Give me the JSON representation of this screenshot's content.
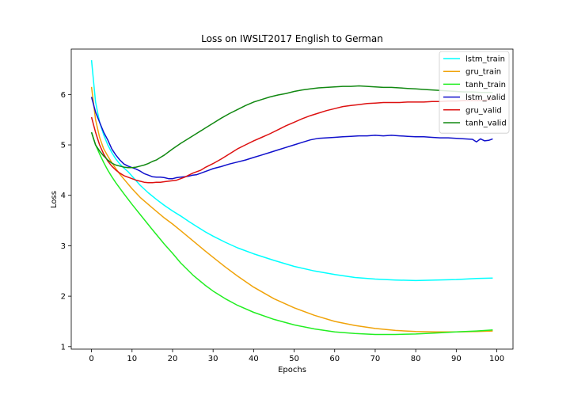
{
  "chart_data": {
    "type": "line",
    "title": "Loss on IWSLT2017 English to German",
    "xlabel": "Epochs",
    "ylabel": "Loss",
    "xlim": [
      -5,
      104
    ],
    "ylim": [
      0.95,
      6.9
    ],
    "xticks": [
      0,
      10,
      20,
      30,
      40,
      50,
      60,
      70,
      80,
      90,
      100
    ],
    "yticks": [
      1,
      2,
      3,
      4,
      5,
      6
    ],
    "grid": false,
    "legend_position": "top-right",
    "series": [
      {
        "name": "lstm_train",
        "color": "#00ffff",
        "points": [
          [
            0,
            6.68
          ],
          [
            1,
            5.85
          ],
          [
            2,
            5.45
          ],
          [
            3,
            5.2
          ],
          [
            4,
            5.0
          ],
          [
            5,
            4.85
          ],
          [
            6,
            4.72
          ],
          [
            7,
            4.62
          ],
          [
            8,
            4.54
          ],
          [
            9,
            4.47
          ],
          [
            10,
            4.38
          ],
          [
            12,
            4.2
          ],
          [
            14,
            4.05
          ],
          [
            16,
            3.92
          ],
          [
            18,
            3.8
          ],
          [
            20,
            3.69
          ],
          [
            22,
            3.59
          ],
          [
            24,
            3.48
          ],
          [
            26,
            3.38
          ],
          [
            28,
            3.28
          ],
          [
            30,
            3.19
          ],
          [
            33,
            3.07
          ],
          [
            36,
            2.96
          ],
          [
            40,
            2.84
          ],
          [
            45,
            2.71
          ],
          [
            50,
            2.59
          ],
          [
            55,
            2.5
          ],
          [
            60,
            2.43
          ],
          [
            65,
            2.37
          ],
          [
            70,
            2.34
          ],
          [
            75,
            2.32
          ],
          [
            80,
            2.31
          ],
          [
            85,
            2.32
          ],
          [
            90,
            2.33
          ],
          [
            95,
            2.35
          ],
          [
            99,
            2.36
          ]
        ]
      },
      {
        "name": "gru_train",
        "color": "#f0a30a",
        "points": [
          [
            0,
            6.15
          ],
          [
            1,
            5.5
          ],
          [
            2,
            5.15
          ],
          [
            3,
            4.92
          ],
          [
            4,
            4.78
          ],
          [
            5,
            4.65
          ],
          [
            6,
            4.53
          ],
          [
            7,
            4.42
          ],
          [
            8,
            4.32
          ],
          [
            10,
            4.13
          ],
          [
            12,
            3.96
          ],
          [
            15,
            3.75
          ],
          [
            18,
            3.55
          ],
          [
            20,
            3.43
          ],
          [
            22,
            3.3
          ],
          [
            25,
            3.1
          ],
          [
            28,
            2.9
          ],
          [
            30,
            2.77
          ],
          [
            33,
            2.58
          ],
          [
            36,
            2.4
          ],
          [
            40,
            2.18
          ],
          [
            45,
            1.95
          ],
          [
            50,
            1.77
          ],
          [
            55,
            1.62
          ],
          [
            60,
            1.5
          ],
          [
            65,
            1.42
          ],
          [
            70,
            1.36
          ],
          [
            75,
            1.32
          ],
          [
            80,
            1.3
          ],
          [
            85,
            1.29
          ],
          [
            90,
            1.29
          ],
          [
            95,
            1.3
          ],
          [
            99,
            1.31
          ]
        ]
      },
      {
        "name": "tanh_train",
        "color": "#22ee22",
        "points": [
          [
            0,
            5.25
          ],
          [
            1,
            5.0
          ],
          [
            2,
            4.82
          ],
          [
            3,
            4.65
          ],
          [
            4,
            4.5
          ],
          [
            5,
            4.37
          ],
          [
            6,
            4.25
          ],
          [
            7,
            4.14
          ],
          [
            8,
            4.03
          ],
          [
            10,
            3.82
          ],
          [
            12,
            3.62
          ],
          [
            15,
            3.32
          ],
          [
            18,
            3.03
          ],
          [
            20,
            2.85
          ],
          [
            22,
            2.66
          ],
          [
            25,
            2.42
          ],
          [
            28,
            2.22
          ],
          [
            30,
            2.1
          ],
          [
            33,
            1.95
          ],
          [
            36,
            1.82
          ],
          [
            40,
            1.68
          ],
          [
            45,
            1.54
          ],
          [
            50,
            1.43
          ],
          [
            55,
            1.35
          ],
          [
            60,
            1.29
          ],
          [
            65,
            1.26
          ],
          [
            70,
            1.24
          ],
          [
            75,
            1.24
          ],
          [
            80,
            1.25
          ],
          [
            85,
            1.27
          ],
          [
            90,
            1.29
          ],
          [
            95,
            1.31
          ],
          [
            99,
            1.33
          ]
        ]
      },
      {
        "name": "lstm_valid",
        "color": "#1010cc",
        "points": [
          [
            0,
            5.95
          ],
          [
            1,
            5.65
          ],
          [
            2,
            5.45
          ],
          [
            3,
            5.25
          ],
          [
            4,
            5.1
          ],
          [
            5,
            4.92
          ],
          [
            6,
            4.8
          ],
          [
            7,
            4.7
          ],
          [
            8,
            4.62
          ],
          [
            9,
            4.58
          ],
          [
            10,
            4.55
          ],
          [
            11,
            4.52
          ],
          [
            12,
            4.48
          ],
          [
            13,
            4.43
          ],
          [
            14,
            4.4
          ],
          [
            15,
            4.37
          ],
          [
            16,
            4.36
          ],
          [
            17,
            4.36
          ],
          [
            18,
            4.35
          ],
          [
            19,
            4.33
          ],
          [
            20,
            4.33
          ],
          [
            21,
            4.35
          ],
          [
            22,
            4.36
          ],
          [
            23,
            4.37
          ],
          [
            24,
            4.38
          ],
          [
            25,
            4.4
          ],
          [
            26,
            4.41
          ],
          [
            27,
            4.44
          ],
          [
            28,
            4.47
          ],
          [
            29,
            4.5
          ],
          [
            30,
            4.53
          ],
          [
            32,
            4.57
          ],
          [
            34,
            4.62
          ],
          [
            36,
            4.66
          ],
          [
            38,
            4.7
          ],
          [
            40,
            4.75
          ],
          [
            42,
            4.8
          ],
          [
            44,
            4.85
          ],
          [
            46,
            4.9
          ],
          [
            48,
            4.95
          ],
          [
            50,
            5.0
          ],
          [
            52,
            5.05
          ],
          [
            54,
            5.1
          ],
          [
            56,
            5.13
          ],
          [
            58,
            5.14
          ],
          [
            60,
            5.15
          ],
          [
            62,
            5.16
          ],
          [
            64,
            5.17
          ],
          [
            66,
            5.18
          ],
          [
            68,
            5.18
          ],
          [
            70,
            5.19
          ],
          [
            72,
            5.18
          ],
          [
            74,
            5.19
          ],
          [
            76,
            5.18
          ],
          [
            78,
            5.17
          ],
          [
            80,
            5.16
          ],
          [
            82,
            5.16
          ],
          [
            84,
            5.15
          ],
          [
            86,
            5.14
          ],
          [
            88,
            5.14
          ],
          [
            90,
            5.13
          ],
          [
            92,
            5.12
          ],
          [
            94,
            5.11
          ],
          [
            95,
            5.06
          ],
          [
            96,
            5.12
          ],
          [
            97,
            5.08
          ],
          [
            98,
            5.09
          ],
          [
            99,
            5.12
          ]
        ]
      },
      {
        "name": "gru_valid",
        "color": "#dd1111",
        "points": [
          [
            0,
            5.55
          ],
          [
            1,
            5.25
          ],
          [
            2,
            5.0
          ],
          [
            3,
            4.82
          ],
          [
            4,
            4.68
          ],
          [
            5,
            4.58
          ],
          [
            6,
            4.5
          ],
          [
            7,
            4.44
          ],
          [
            8,
            4.39
          ],
          [
            9,
            4.36
          ],
          [
            10,
            4.33
          ],
          [
            11,
            4.3
          ],
          [
            12,
            4.28
          ],
          [
            13,
            4.26
          ],
          [
            14,
            4.25
          ],
          [
            15,
            4.25
          ],
          [
            16,
            4.26
          ],
          [
            17,
            4.26
          ],
          [
            18,
            4.27
          ],
          [
            19,
            4.28
          ],
          [
            20,
            4.29
          ],
          [
            21,
            4.3
          ],
          [
            22,
            4.33
          ],
          [
            23,
            4.36
          ],
          [
            24,
            4.4
          ],
          [
            25,
            4.44
          ],
          [
            26,
            4.47
          ],
          [
            27,
            4.5
          ],
          [
            28,
            4.55
          ],
          [
            30,
            4.63
          ],
          [
            32,
            4.72
          ],
          [
            34,
            4.82
          ],
          [
            36,
            4.92
          ],
          [
            38,
            5.0
          ],
          [
            40,
            5.08
          ],
          [
            42,
            5.15
          ],
          [
            44,
            5.22
          ],
          [
            46,
            5.3
          ],
          [
            48,
            5.38
          ],
          [
            50,
            5.45
          ],
          [
            52,
            5.52
          ],
          [
            54,
            5.58
          ],
          [
            56,
            5.63
          ],
          [
            58,
            5.68
          ],
          [
            60,
            5.72
          ],
          [
            62,
            5.76
          ],
          [
            64,
            5.78
          ],
          [
            66,
            5.8
          ],
          [
            68,
            5.82
          ],
          [
            70,
            5.83
          ],
          [
            72,
            5.84
          ],
          [
            74,
            5.84
          ],
          [
            76,
            5.84
          ],
          [
            78,
            5.85
          ],
          [
            80,
            5.85
          ],
          [
            82,
            5.85
          ],
          [
            84,
            5.86
          ],
          [
            86,
            5.86
          ],
          [
            88,
            5.87
          ],
          [
            90,
            5.87
          ],
          [
            92,
            5.88
          ],
          [
            94,
            5.88
          ],
          [
            96,
            5.88
          ],
          [
            98,
            5.89
          ],
          [
            99,
            5.89
          ]
        ]
      },
      {
        "name": "tanh_valid",
        "color": "#118811",
        "points": [
          [
            0,
            5.25
          ],
          [
            1,
            5.0
          ],
          [
            2,
            4.88
          ],
          [
            3,
            4.78
          ],
          [
            4,
            4.7
          ],
          [
            5,
            4.64
          ],
          [
            6,
            4.6
          ],
          [
            7,
            4.58
          ],
          [
            8,
            4.56
          ],
          [
            9,
            4.55
          ],
          [
            10,
            4.55
          ],
          [
            11,
            4.56
          ],
          [
            12,
            4.58
          ],
          [
            13,
            4.6
          ],
          [
            14,
            4.63
          ],
          [
            15,
            4.67
          ],
          [
            16,
            4.7
          ],
          [
            17,
            4.75
          ],
          [
            18,
            4.8
          ],
          [
            19,
            4.86
          ],
          [
            20,
            4.92
          ],
          [
            22,
            5.03
          ],
          [
            24,
            5.13
          ],
          [
            26,
            5.23
          ],
          [
            28,
            5.33
          ],
          [
            30,
            5.43
          ],
          [
            32,
            5.53
          ],
          [
            34,
            5.62
          ],
          [
            36,
            5.7
          ],
          [
            38,
            5.78
          ],
          [
            40,
            5.85
          ],
          [
            42,
            5.9
          ],
          [
            44,
            5.95
          ],
          [
            46,
            5.99
          ],
          [
            48,
            6.02
          ],
          [
            50,
            6.06
          ],
          [
            52,
            6.09
          ],
          [
            54,
            6.11
          ],
          [
            56,
            6.13
          ],
          [
            58,
            6.14
          ],
          [
            60,
            6.15
          ],
          [
            62,
            6.16
          ],
          [
            64,
            6.16
          ],
          [
            66,
            6.17
          ],
          [
            68,
            6.16
          ],
          [
            70,
            6.15
          ],
          [
            72,
            6.14
          ],
          [
            74,
            6.14
          ],
          [
            76,
            6.13
          ],
          [
            78,
            6.12
          ],
          [
            80,
            6.11
          ],
          [
            82,
            6.1
          ],
          [
            84,
            6.09
          ],
          [
            86,
            6.08
          ],
          [
            88,
            6.07
          ],
          [
            90,
            6.06
          ],
          [
            92,
            6.05
          ],
          [
            94,
            6.05
          ],
          [
            96,
            6.04
          ],
          [
            98,
            6.04
          ],
          [
            99,
            6.04
          ]
        ]
      }
    ]
  }
}
